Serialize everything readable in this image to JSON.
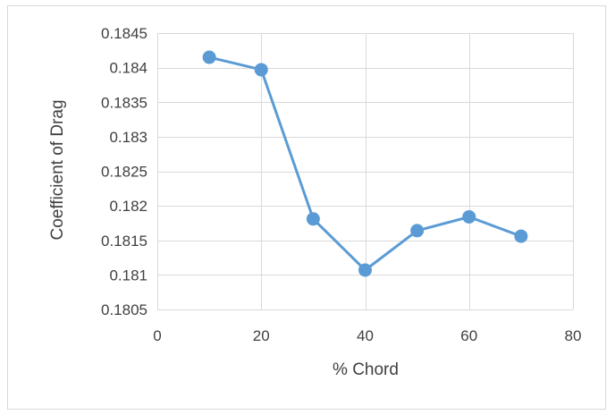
{
  "chart_data": {
    "type": "line",
    "title": "",
    "xlabel": "% Chord",
    "ylabel": "Coefficient of Drag",
    "xlim": [
      0,
      80
    ],
    "ylim": [
      0.1805,
      0.1845
    ],
    "x_ticks": [
      0,
      20,
      40,
      60,
      80
    ],
    "y_ticks": [
      0.1805,
      0.181,
      0.1815,
      0.182,
      0.1825,
      0.183,
      0.1835,
      0.184,
      0.1845
    ],
    "x_tick_labels": [
      "0",
      "20",
      "40",
      "60",
      "80"
    ],
    "y_tick_labels": [
      "0.1805",
      "0.181",
      "0.1815",
      "0.182",
      "0.1825",
      "0.183",
      "0.1835",
      "0.184",
      "0.1845"
    ],
    "grid": true,
    "legend": "none",
    "series": [
      {
        "color": "#5b9bd5",
        "marker": "circle",
        "x": [
          10,
          20,
          30,
          40,
          50,
          60,
          70
        ],
        "y": [
          0.18415,
          0.18397,
          0.18181,
          0.18107,
          0.18164,
          0.18184,
          0.18156
        ]
      }
    ],
    "colors": {
      "grid": "#d9d9d9",
      "axis_text": "#404040"
    }
  }
}
